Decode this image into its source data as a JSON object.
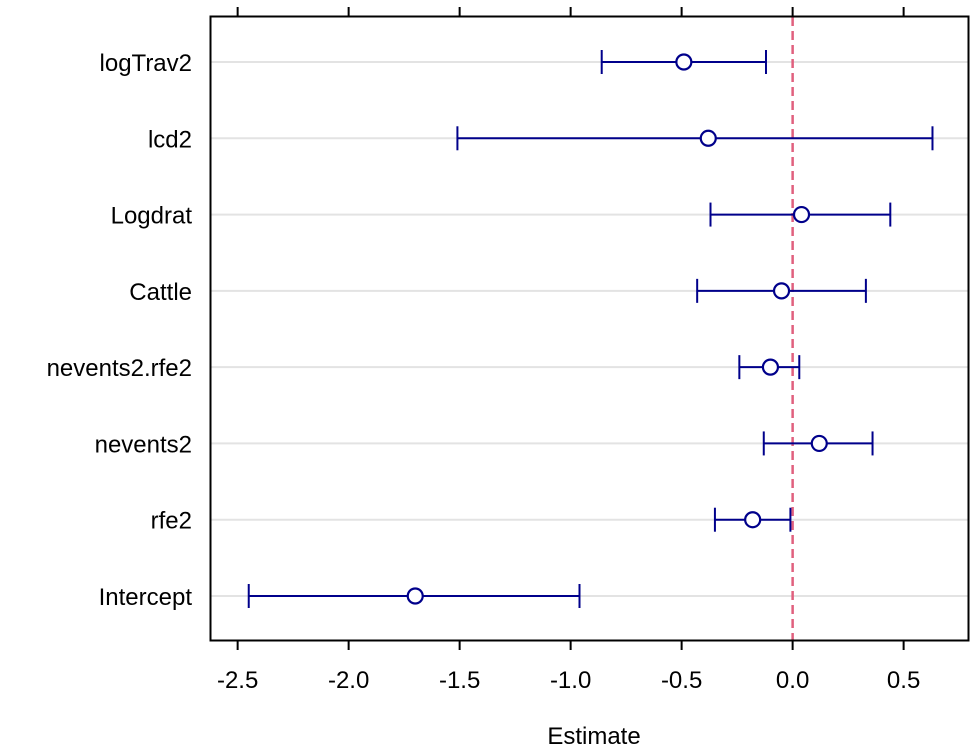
{
  "chart_data": {
    "type": "forest",
    "xlabel": "Estimate",
    "ylabel": "",
    "xlim": [
      -2.62,
      0.79
    ],
    "xticks": [
      -2.5,
      -2.0,
      -1.5,
      -1.0,
      -0.5,
      0.0,
      0.5
    ],
    "xtick_labels": [
      "-2.5",
      "-2.0",
      "-1.5",
      "-1.0",
      "-0.5",
      "0.0",
      "0.5"
    ],
    "reference_line": 0.0,
    "grid": "horizontal",
    "colors": {
      "series": "#00008B",
      "reference_line": "#E0607E",
      "grid": "#E3E3E3"
    },
    "terms": [
      {
        "label": "logTrav2",
        "estimate": -0.49,
        "lower": -0.86,
        "upper": -0.12
      },
      {
        "label": "lcd2",
        "estimate": -0.38,
        "lower": -1.51,
        "upper": 0.63
      },
      {
        "label": "Logdrat",
        "estimate": 0.04,
        "lower": -0.37,
        "upper": 0.44
      },
      {
        "label": "Cattle",
        "estimate": -0.05,
        "lower": -0.43,
        "upper": 0.33
      },
      {
        "label": "nevents2.rfe2",
        "estimate": -0.1,
        "lower": -0.24,
        "upper": 0.03
      },
      {
        "label": "nevents2",
        "estimate": 0.12,
        "lower": -0.13,
        "upper": 0.36
      },
      {
        "label": "rfe2",
        "estimate": -0.18,
        "lower": -0.35,
        "upper": -0.01
      },
      {
        "label": "Intercept",
        "estimate": -1.7,
        "lower": -2.45,
        "upper": -0.96
      }
    ]
  }
}
